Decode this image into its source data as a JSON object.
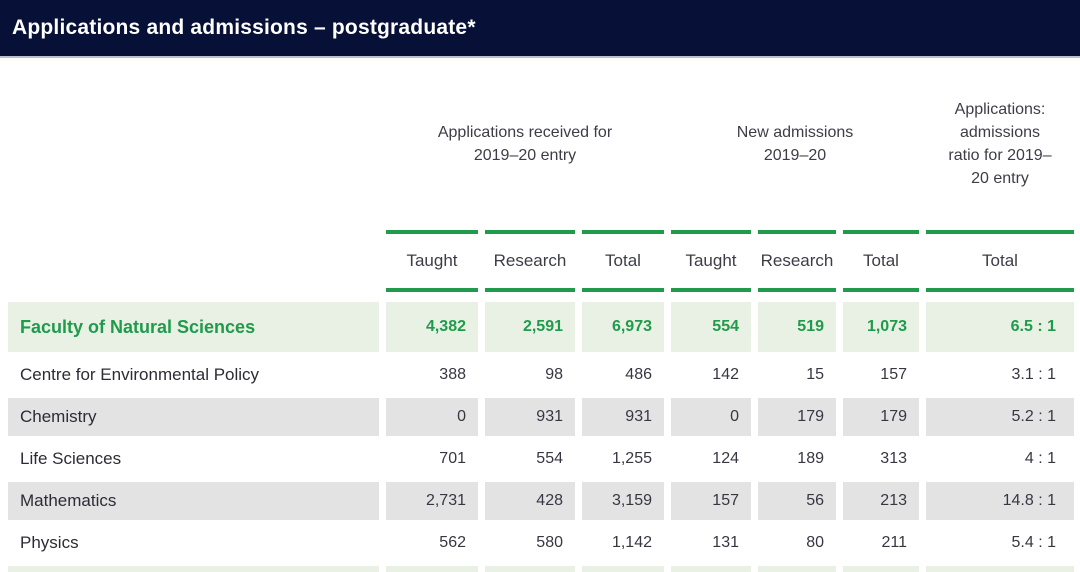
{
  "title": "Applications and admissions – postgraduate*",
  "header": {
    "groups": [
      {
        "label": "Applications received for 2019–20 entry"
      },
      {
        "label": "New admissions 2019–20"
      },
      {
        "label": "Applications: admissions ratio for 2019–20 entry"
      }
    ],
    "subcols": [
      "Taught",
      "Research",
      "Total",
      "Taught",
      "Research",
      "Total",
      "Total"
    ]
  },
  "table": {
    "rows": [
      {
        "name": "Faculty of Natural Sciences",
        "values": [
          "4,382",
          "2,591",
          "6,973",
          "554",
          "519",
          "1,073",
          "6.5 : 1"
        ]
      },
      {
        "name": "Centre for Environmental Policy",
        "values": [
          "388",
          "98",
          "486",
          "142",
          "15",
          "157",
          "3.1 : 1"
        ]
      },
      {
        "name": "Chemistry",
        "values": [
          "0",
          "931",
          "931",
          "0",
          "179",
          "179",
          "5.2 : 1"
        ]
      },
      {
        "name": "Life Sciences",
        "values": [
          "701",
          "554",
          "1,255",
          "124",
          "189",
          "313",
          "4 : 1"
        ]
      },
      {
        "name": "Mathematics",
        "values": [
          "2,731",
          "428",
          "3,159",
          "157",
          "56",
          "213",
          "14.8 : 1"
        ]
      },
      {
        "name": "Physics",
        "values": [
          "562",
          "580",
          "1,142",
          "131",
          "80",
          "211",
          "5.4 : 1"
        ]
      }
    ]
  },
  "colors": {
    "header_bar": "#071036",
    "accent_green": "#1f9b4b",
    "highlight_row_bg": "#e9f1e5",
    "alt_row_bg": "#e3e3e4"
  }
}
